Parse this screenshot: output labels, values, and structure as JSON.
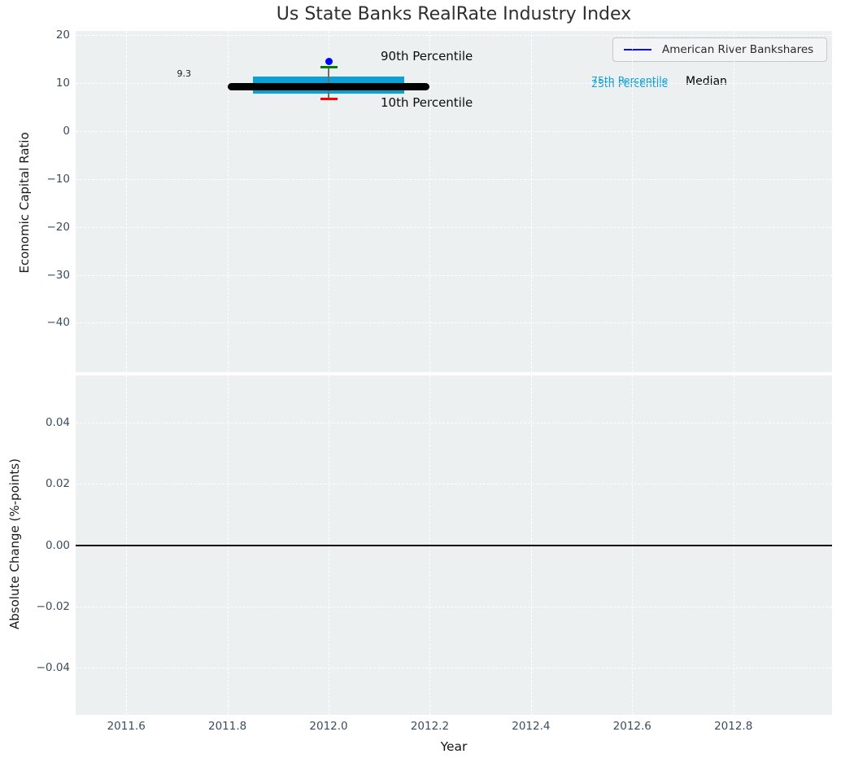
{
  "title": "Us State Banks RealRate Industry Index",
  "legend": {
    "series_label": "American River Bankshares",
    "line_color": "#0000ff"
  },
  "annotations": {
    "median_value_label": "9.3",
    "p90": "90th Percentile",
    "p10": "10th Percentile",
    "p75": "75th Percentile",
    "p25": "25th Percentile",
    "median": "Median"
  },
  "colors": {
    "axes_bg": "#ecf0f1",
    "grid": "#ffffff",
    "tick_text": "#3b4d5e",
    "box_fill": "#0ba1d4",
    "median_line": "#000000",
    "whisker": "#6e6e6e",
    "cap_90": "#008000",
    "cap_10": "#ff0000",
    "company_dot": "#0000ff",
    "percentile_label_cyan": "#12a0d4",
    "zero_line": "#000000"
  },
  "chart_data": [
    {
      "type": "box",
      "panel": "top",
      "title": "Us State Banks RealRate Industry Index",
      "xlabel": "Year",
      "ylabel": "Economic Capital Ratio",
      "xlim": [
        2011.5,
        2012.995
      ],
      "ylim": [
        -50.3,
        20.9
      ],
      "grid": true,
      "legend_position": "upper right",
      "xticks": {
        "values": [
          2011.6,
          2011.8,
          2012.0,
          2012.2,
          2012.4,
          2012.6,
          2012.8
        ],
        "labels": [
          "2011.6",
          "2011.8",
          "2012.0",
          "2012.2",
          "2012.4",
          "2012.6",
          "2012.8"
        ]
      },
      "yticks": {
        "values": [
          20,
          10,
          0,
          -10,
          -20,
          -30,
          -40
        ],
        "labels": [
          "20",
          "10",
          "0",
          "−10",
          "−20",
          "−30",
          "−40"
        ]
      },
      "series_name": "American River Bankshares",
      "box": {
        "x_center": 2012.0,
        "box_x_range": [
          2011.85,
          2012.15
        ],
        "median_x_range": [
          2011.8,
          2012.2
        ],
        "p10": 6.7,
        "p25": 7.8,
        "median": 9.3,
        "p75": 11.4,
        "p90": 13.3,
        "company_value": 14.5,
        "median_annotation": {
          "text": "9.3",
          "x": 2011.72,
          "y": 9.3
        }
      }
    },
    {
      "type": "line",
      "panel": "bottom",
      "xlabel": "Year",
      "ylabel": "Absolute Change (%-points)",
      "xlim": [
        2011.5,
        2012.995
      ],
      "ylim": [
        -0.0555,
        0.0555
      ],
      "grid": true,
      "xticks": {
        "values": [
          2011.6,
          2011.8,
          2012.0,
          2012.2,
          2012.4,
          2012.6,
          2012.8
        ],
        "labels": [
          "2011.6",
          "2011.8",
          "2012.0",
          "2012.2",
          "2012.4",
          "2012.6",
          "2012.8"
        ]
      },
      "yticks": {
        "values": [
          0.04,
          0.02,
          0.0,
          -0.02,
          -0.04
        ],
        "labels": [
          "0.04",
          "0.02",
          "0.00",
          "−0.02",
          "−0.04"
        ]
      },
      "zero_line": 0.0,
      "values": []
    }
  ]
}
